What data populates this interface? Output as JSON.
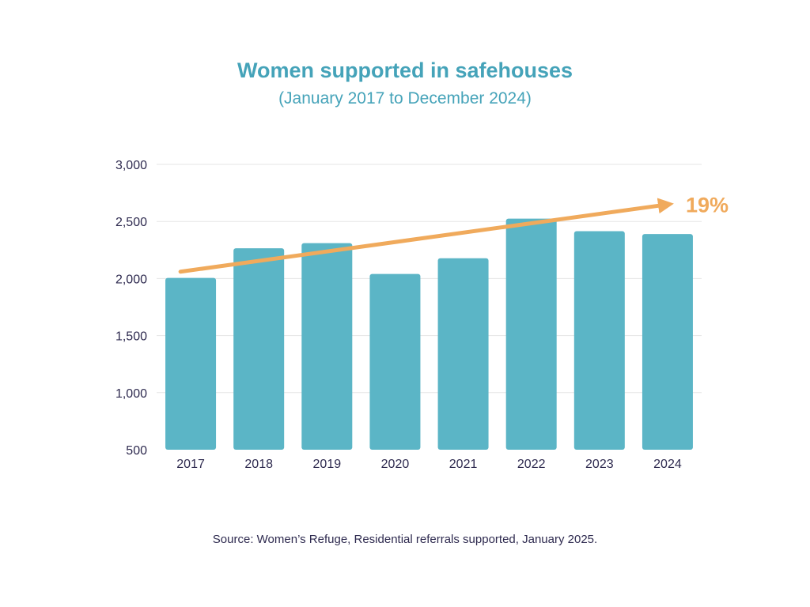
{
  "header": {
    "title": "Women supported in safehouses",
    "subtitle": "(January 2017 to December 2024)"
  },
  "chart_data": {
    "type": "bar",
    "categories": [
      "2017",
      "2018",
      "2019",
      "2020",
      "2021",
      "2022",
      "2023",
      "2024"
    ],
    "values": [
      2005,
      2265,
      2310,
      2040,
      2178,
      2525,
      2415,
      2390
    ],
    "ylim": [
      500,
      3000
    ],
    "yticks": [
      500,
      1000,
      1500,
      2000,
      2500,
      3000
    ],
    "ytick_labels": [
      "500",
      "1,000",
      "1,500",
      "2,000",
      "2,500",
      "3,000"
    ],
    "grid": true,
    "trend": {
      "from_value": 2060,
      "to_value": 2650,
      "label": "19%"
    },
    "colors": {
      "bar": "#5bb5c6",
      "trend": "#f0aa5c",
      "grid": "#e5e5e5",
      "tick_text": "#2e2a4f"
    }
  },
  "footer": {
    "source": "Source: Women’s Refuge, Residential referrals supported, January 2025."
  }
}
